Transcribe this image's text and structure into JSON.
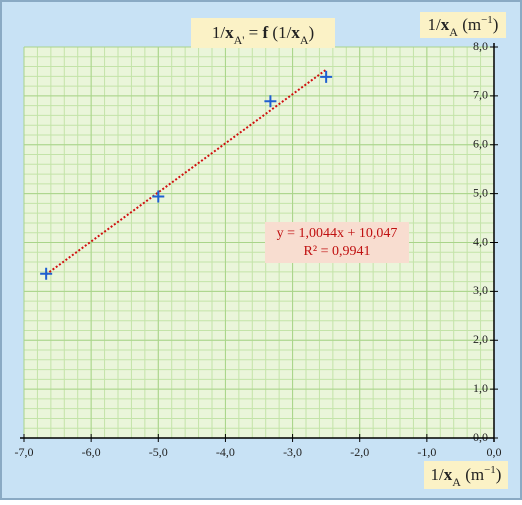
{
  "chart_data": {
    "type": "scatter",
    "title": [
      "1/",
      "x",
      "A'",
      " = ",
      "f",
      " (1/",
      "x",
      "A",
      ")"
    ],
    "x_label": [
      "1/",
      "x",
      "A",
      " (m",
      "−1",
      ")"
    ],
    "y_label": [
      "1/",
      "x",
      "A",
      " (m",
      "−1",
      ")"
    ],
    "x": [
      -6.67,
      -5.0,
      -3.33,
      -2.5
    ],
    "values": [
      3.36,
      4.94,
      6.89,
      7.39
    ],
    "color": "#1f5fd0",
    "trendline": {
      "slope": 1.0044,
      "intercept": 10.047,
      "color": "#d01010",
      "equation": "y = 1,0044x + 10,047",
      "r2": "R² = 0,9941"
    },
    "xlim": [
      -7,
      0
    ],
    "ylim": [
      0,
      8
    ],
    "xticks": [
      {
        "value": -7,
        "label": "-7,0"
      },
      {
        "value": -6,
        "label": "-6,0"
      },
      {
        "value": -5,
        "label": "-5,0"
      },
      {
        "value": -4,
        "label": "-4,0"
      },
      {
        "value": -3,
        "label": "-3,0"
      },
      {
        "value": -2,
        "label": "-2,0"
      },
      {
        "value": -1,
        "label": "-1,0"
      },
      {
        "value": 0,
        "label": "0,0"
      }
    ],
    "yticks": [
      {
        "value": 0,
        "label": "0,0"
      },
      {
        "value": 1,
        "label": "1,0"
      },
      {
        "value": 2,
        "label": "2,0"
      },
      {
        "value": 3,
        "label": "3,0"
      },
      {
        "value": 4,
        "label": "4,0"
      },
      {
        "value": 5,
        "label": "5,0"
      },
      {
        "value": 6,
        "label": "6,0"
      },
      {
        "value": 7,
        "label": "7,0"
      },
      {
        "value": 8,
        "label": "8,0"
      }
    ],
    "grid": true,
    "minor_grid_step": 0.2
  }
}
